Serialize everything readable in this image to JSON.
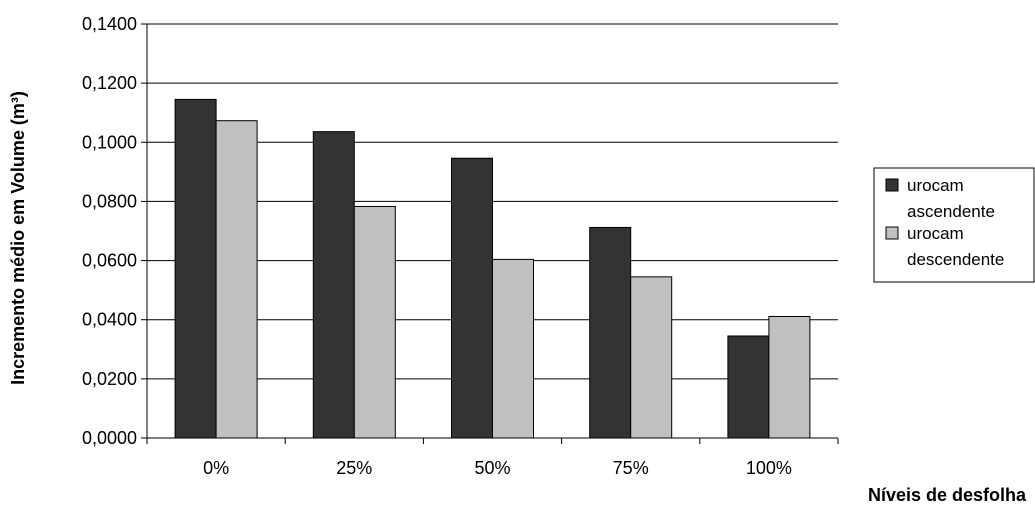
{
  "chart_data": {
    "type": "bar",
    "categories": [
      "0%",
      "25%",
      "50%",
      "75%",
      "100%"
    ],
    "series": [
      {
        "name": "urocam ascendente",
        "values": [
          0.1145,
          0.1036,
          0.0946,
          0.0712,
          0.0345
        ],
        "color": "#333333"
      },
      {
        "name": "urocam descendente",
        "values": [
          0.1073,
          0.0783,
          0.0604,
          0.0545,
          0.0411
        ],
        "color": "#c0c0c0"
      }
    ],
    "xlabel": "Níveis de desfolha",
    "ylabel": "Incremento médio em Volume (m³)",
    "ylim": [
      0,
      0.14
    ],
    "yticks": [
      "0,0000",
      "0,0200",
      "0,0400",
      "0,0600",
      "0,0800",
      "0,1000",
      "0,1200",
      "0,1400"
    ],
    "ytick_step": 0.02,
    "grid": true,
    "legend_position": "right"
  }
}
